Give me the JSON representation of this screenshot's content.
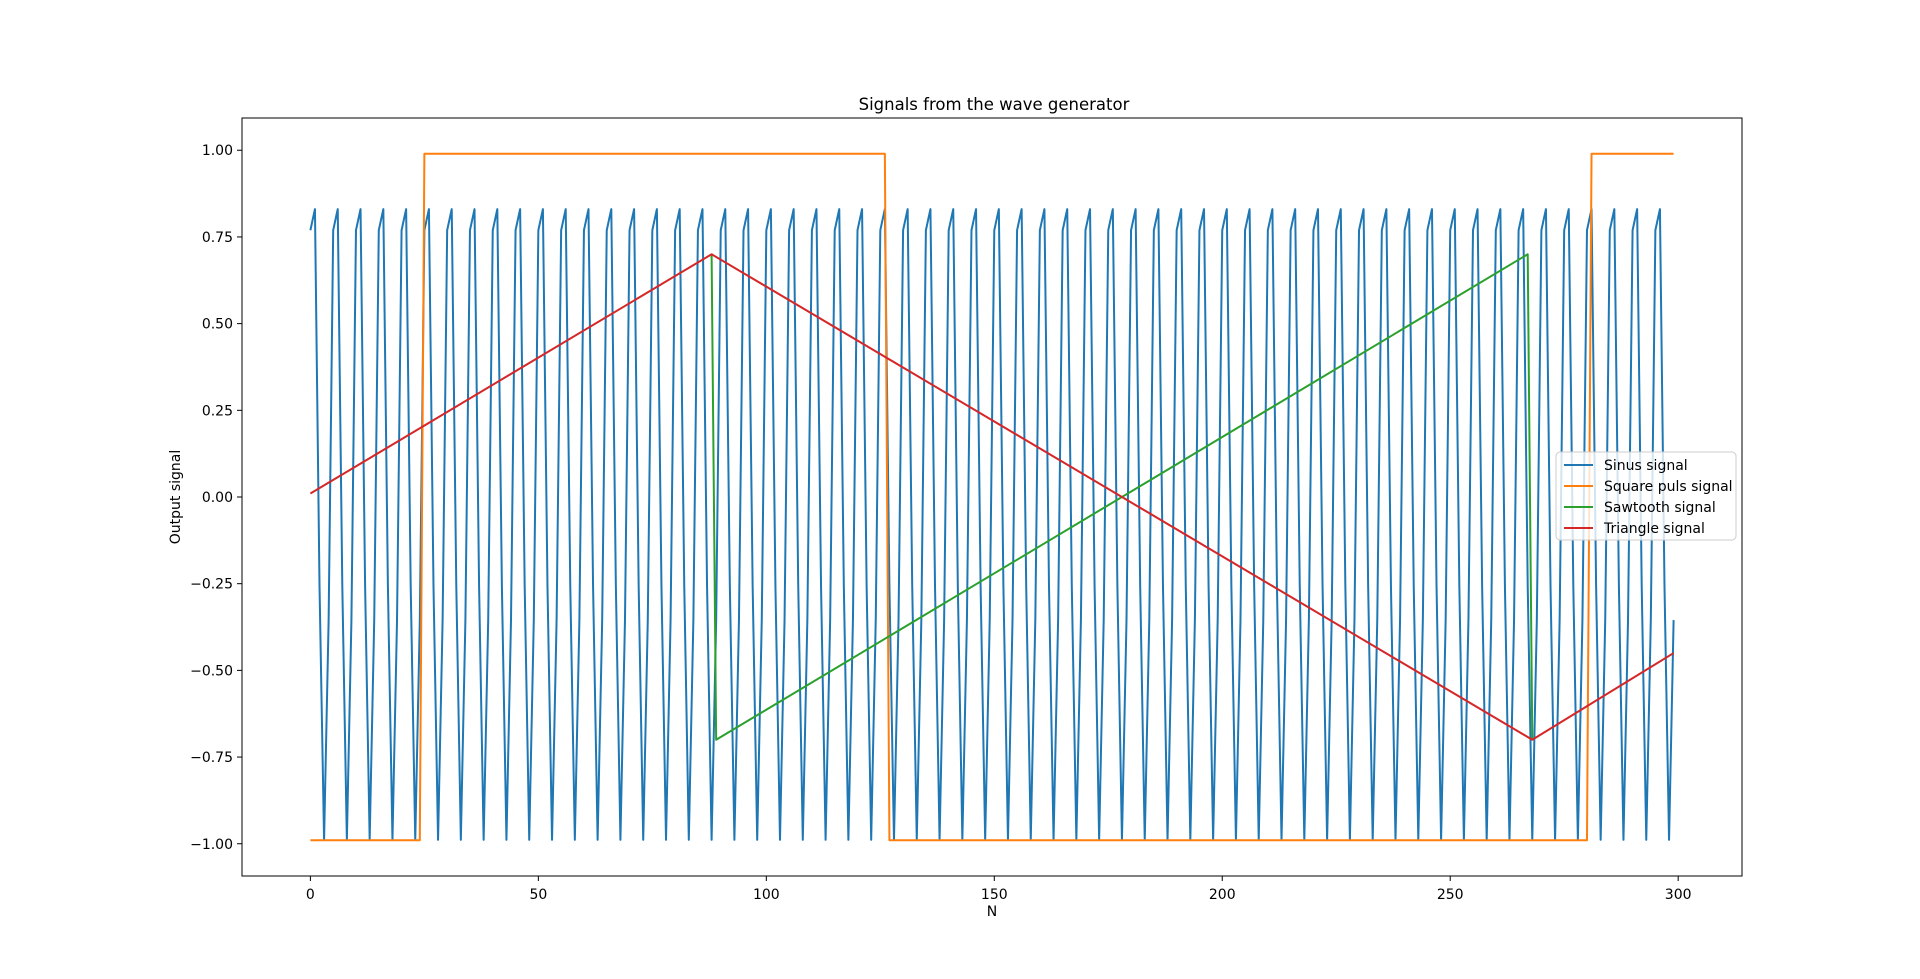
{
  "chart_data": {
    "type": "line",
    "title": "Signals from the wave generator",
    "xlabel": "N",
    "ylabel": "Output signal",
    "xlim": [
      -15,
      314
    ],
    "ylim": [
      -1.093,
      1.093
    ],
    "xticks": [
      0,
      50,
      100,
      150,
      200,
      250,
      300
    ],
    "yticks": [
      -1.0,
      -0.75,
      -0.5,
      -0.25,
      0.0,
      0.25,
      0.5,
      0.75,
      1.0
    ],
    "ytick_labels": [
      "−1.00",
      "−0.75",
      "−0.50",
      "−0.25",
      "0.00",
      "0.25",
      "0.50",
      "0.75",
      "1.00"
    ],
    "grid": false,
    "legend_position": "center-right",
    "series": [
      {
        "name": "Sinus signal",
        "color": "#1f77b4",
        "generator": {
          "kind": "sine",
          "n": 300,
          "amplitude": 0.99,
          "cycles_per_sample": 0.2,
          "phase_rad": 0.89
        }
      },
      {
        "name": "Square puls signal",
        "color": "#ff7f0e",
        "x": [
          0,
          24,
          25,
          126,
          127,
          280,
          281,
          299
        ],
        "y": [
          -0.99,
          -0.99,
          0.99,
          0.99,
          -0.99,
          -0.99,
          0.99,
          0.99
        ]
      },
      {
        "name": "Sawtooth signal",
        "color": "#2ca02c",
        "x": [
          88,
          89,
          267,
          268
        ],
        "y": [
          0.7,
          -0.7,
          0.7,
          -0.7
        ]
      },
      {
        "name": "Triangle signal",
        "color": "#d62728",
        "x": [
          0,
          88,
          268,
          299
        ],
        "y": [
          0.01,
          0.7,
          -0.7,
          -0.45
        ]
      }
    ]
  }
}
